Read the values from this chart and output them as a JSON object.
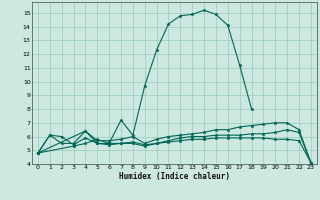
{
  "title": "",
  "xlabel": "Humidex (Indice chaleur)",
  "xlim": [
    -0.5,
    23.5
  ],
  "ylim": [
    4,
    15.8
  ],
  "yticks": [
    4,
    5,
    6,
    7,
    8,
    9,
    10,
    11,
    12,
    13,
    14,
    15
  ],
  "xticks": [
    0,
    1,
    2,
    3,
    4,
    5,
    6,
    7,
    8,
    9,
    10,
    11,
    12,
    13,
    14,
    15,
    16,
    17,
    18,
    19,
    20,
    21,
    22,
    23
  ],
  "bg_color": "#cce8e0",
  "grid_color": "#99ccbb",
  "line_color": "#006655",
  "curves": [
    {
      "x": [
        0,
        1,
        2,
        3,
        4,
        5,
        6,
        7,
        8,
        9,
        10,
        11,
        12,
        13,
        14,
        15,
        16,
        17,
        18
      ],
      "y": [
        4.8,
        6.1,
        6.0,
        5.4,
        5.9,
        5.5,
        5.5,
        7.2,
        6.1,
        9.7,
        12.3,
        14.2,
        14.8,
        14.9,
        15.2,
        14.9,
        14.1,
        11.2,
        8.0
      ]
    },
    {
      "x": [
        0,
        1,
        2,
        3,
        4,
        5,
        6,
        7,
        8,
        9,
        10,
        11,
        12,
        13,
        14,
        15,
        16,
        17,
        18,
        19,
        20,
        21,
        22,
        23
      ],
      "y": [
        4.8,
        6.1,
        5.5,
        5.5,
        6.4,
        5.7,
        5.7,
        5.8,
        6.0,
        5.5,
        5.8,
        6.0,
        6.1,
        6.2,
        6.3,
        6.5,
        6.5,
        6.7,
        6.8,
        6.9,
        7.0,
        7.0,
        6.5,
        4.1
      ]
    },
    {
      "x": [
        0,
        3,
        4,
        5,
        6,
        7,
        8,
        9,
        10,
        11,
        12,
        13,
        14,
        15,
        16,
        17,
        18,
        19,
        20,
        21,
        22,
        23
      ],
      "y": [
        4.8,
        5.3,
        5.5,
        5.8,
        5.5,
        5.5,
        5.5,
        5.3,
        5.5,
        5.6,
        5.7,
        5.8,
        5.8,
        5.9,
        5.9,
        5.9,
        5.9,
        5.9,
        5.8,
        5.8,
        5.7,
        4.1
      ]
    },
    {
      "x": [
        0,
        4,
        5,
        6,
        7,
        8,
        9,
        10,
        11,
        12,
        13,
        14,
        15,
        16,
        17,
        18,
        19,
        20,
        21,
        22,
        23
      ],
      "y": [
        4.8,
        6.4,
        5.5,
        5.4,
        5.5,
        5.6,
        5.4,
        5.5,
        5.7,
        5.9,
        6.0,
        6.0,
        6.1,
        6.1,
        6.1,
        6.2,
        6.2,
        6.3,
        6.5,
        6.3,
        4.1
      ]
    }
  ]
}
